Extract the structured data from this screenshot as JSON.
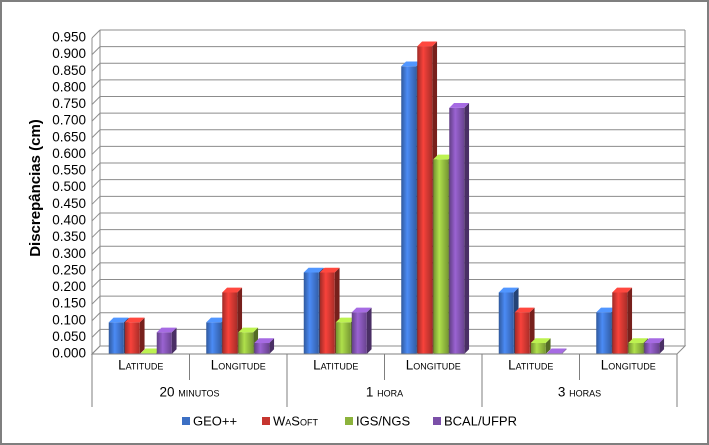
{
  "chart_data": {
    "type": "bar3d",
    "y_label": "Discrepâncias (cm)",
    "categories": [
      "Latitude",
      "Longitude",
      "Latitude",
      "Longitude",
      "Latitude",
      "Longitude"
    ],
    "groups": [
      "20 minutos",
      "1 hora",
      "3 horas"
    ],
    "series": [
      {
        "name": "GEO++",
        "color": "#3c6fc4",
        "values": [
          0.095,
          0.095,
          0.245,
          0.865,
          0.185,
          0.125
        ]
      },
      {
        "name": "WaSoft",
        "color": "#c6352f",
        "values": [
          0.095,
          0.185,
          0.245,
          0.925,
          0.125,
          0.185
        ]
      },
      {
        "name": "IGS/NGS",
        "color": "#8cb33c",
        "values": [
          0.002,
          0.065,
          0.095,
          0.585,
          0.033,
          0.033
        ]
      },
      {
        "name": "BCAL/UFPR",
        "color": "#7b4fa8",
        "values": [
          0.065,
          0.033,
          0.125,
          0.74,
          0.002,
          0.033
        ]
      }
    ],
    "ylim": [
      0,
      0.95
    ],
    "yticks": [
      {
        "value": 0,
        "label": "0.000"
      },
      {
        "value": 0.05,
        "label": "0.050"
      },
      {
        "value": 0.1,
        "label": "0.100"
      },
      {
        "value": 0.15,
        "label": "0.150"
      },
      {
        "value": 0.2,
        "label": "0.200"
      },
      {
        "value": 0.25,
        "label": "0.250"
      },
      {
        "value": 0.3,
        "label": "0.300"
      },
      {
        "value": 0.35,
        "label": "0.350"
      },
      {
        "value": 0.4,
        "label": "0.400"
      },
      {
        "value": 0.45,
        "label": "0.450"
      },
      {
        "value": 0.5,
        "label": "0.500"
      },
      {
        "value": 0.55,
        "label": "0.550"
      },
      {
        "value": 0.6,
        "label": "0.600"
      },
      {
        "value": 0.65,
        "label": "0.650"
      },
      {
        "value": 0.7,
        "label": "0.700"
      },
      {
        "value": 0.75,
        "label": "0.750"
      },
      {
        "value": 0.8,
        "label": "0.800"
      },
      {
        "value": 0.85,
        "label": "0.850"
      },
      {
        "value": 0.9,
        "label": "0.900"
      },
      {
        "value": 0.95,
        "label": "0.950"
      }
    ],
    "grid": true
  }
}
